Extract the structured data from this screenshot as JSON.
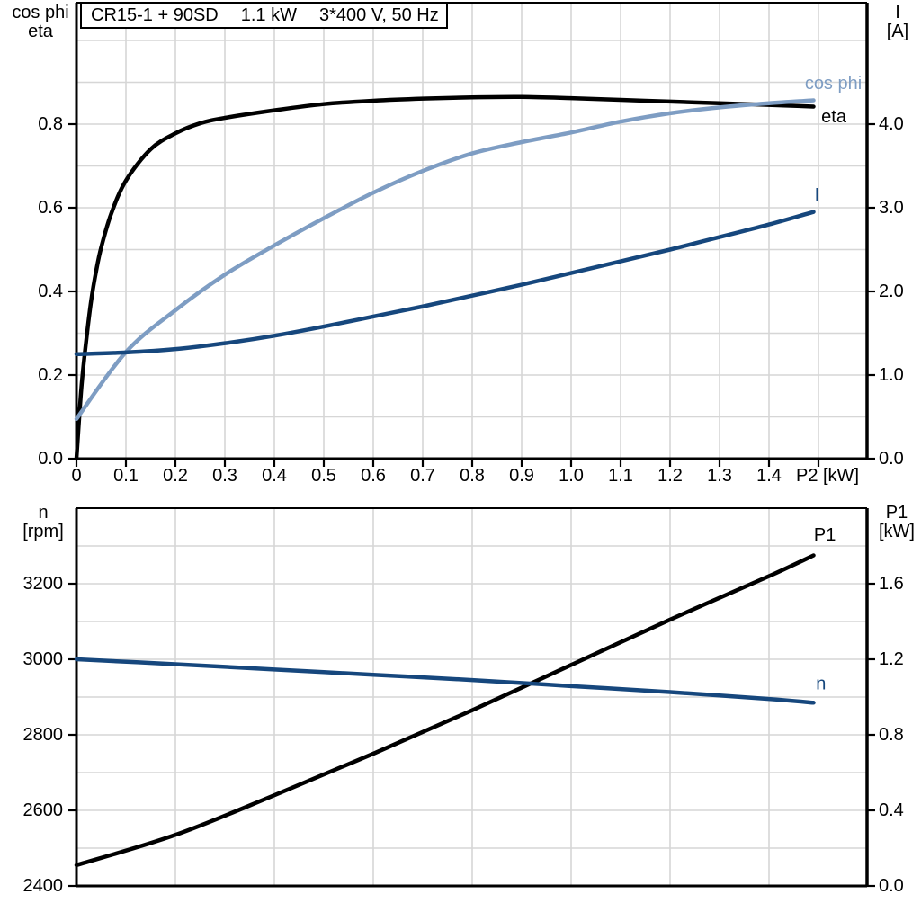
{
  "title_box": {
    "segments": [
      "CR15-1 + 90SD",
      "1.1 kW",
      "3*400 V, 50 Hz"
    ]
  },
  "colors": {
    "black": "#000000",
    "light_blue": "#7E9DC3",
    "dark_blue": "#16477D",
    "grid": "#D6D6D6",
    "background": "#FFFFFF"
  },
  "chart_data": [
    {
      "type": "line",
      "name": "motor-electrical-curves",
      "title": "CR15-1 + 90SD  1.1 kW  3*400 V, 50 Hz",
      "grid": true,
      "legend_position": "inline-right",
      "x_axis": {
        "unit_label": "P2 [kW]",
        "min": 0,
        "max": 1.6,
        "grid_step": 0.1,
        "ticks": [
          {
            "v": 0,
            "label": "0"
          },
          {
            "v": 0.1,
            "label": "0.1"
          },
          {
            "v": 0.2,
            "label": "0.2"
          },
          {
            "v": 0.3,
            "label": "0.3"
          },
          {
            "v": 0.4,
            "label": "0.4"
          },
          {
            "v": 0.5,
            "label": "0.5"
          },
          {
            "v": 0.6,
            "label": "0.6"
          },
          {
            "v": 0.7,
            "label": "0.7"
          },
          {
            "v": 0.8,
            "label": "0.8"
          },
          {
            "v": 0.9,
            "label": "0.9"
          },
          {
            "v": 1.0,
            "label": "1.0"
          },
          {
            "v": 1.1,
            "label": "1.1"
          },
          {
            "v": 1.2,
            "label": "1.2"
          },
          {
            "v": 1.3,
            "label": "1.3"
          },
          {
            "v": 1.4,
            "label": "1.4"
          }
        ]
      },
      "left_axis": {
        "title_lines": [
          "cos phi",
          "eta"
        ],
        "min": 0,
        "max": 1.0,
        "grid_step": 0.1,
        "ticks": [
          {
            "v": 0.0,
            "label": "0.0"
          },
          {
            "v": 0.2,
            "label": "0.2"
          },
          {
            "v": 0.4,
            "label": "0.4"
          },
          {
            "v": 0.6,
            "label": "0.6"
          },
          {
            "v": 0.8,
            "label": "0.8"
          }
        ]
      },
      "right_axis": {
        "title_lines": [
          "I",
          "[A]"
        ],
        "min": 0,
        "max": 5.0,
        "ticks": [
          {
            "v": 0.0,
            "label": "0.0"
          },
          {
            "v": 1.0,
            "label": "1.0"
          },
          {
            "v": 2.0,
            "label": "2.0"
          },
          {
            "v": 3.0,
            "label": "3.0"
          },
          {
            "v": 4.0,
            "label": "4.0"
          }
        ]
      },
      "series": [
        {
          "name": "eta",
          "label": "eta",
          "color": "black",
          "axis": "left",
          "label_pos": {
            "x": 1.531,
            "v": 0.817,
            "axis": "left"
          },
          "points": [
            [
              0,
              0
            ],
            [
              0.01,
              0.17
            ],
            [
              0.02,
              0.285
            ],
            [
              0.03,
              0.38
            ],
            [
              0.04,
              0.45
            ],
            [
              0.05,
              0.505
            ],
            [
              0.07,
              0.585
            ],
            [
              0.1,
              0.665
            ],
            [
              0.15,
              0.74
            ],
            [
              0.2,
              0.778
            ],
            [
              0.25,
              0.802
            ],
            [
              0.3,
              0.815
            ],
            [
              0.4,
              0.833
            ],
            [
              0.5,
              0.848
            ],
            [
              0.6,
              0.856
            ],
            [
              0.7,
              0.861
            ],
            [
              0.8,
              0.864
            ],
            [
              0.9,
              0.865
            ],
            [
              1.0,
              0.862
            ],
            [
              1.1,
              0.858
            ],
            [
              1.2,
              0.854
            ],
            [
              1.3,
              0.85
            ],
            [
              1.4,
              0.846
            ],
            [
              1.49,
              0.842
            ]
          ]
        },
        {
          "name": "cos_phi",
          "label": "cos phi",
          "color": "light_blue",
          "axis": "left",
          "label_pos": {
            "x": 1.53,
            "v": 0.897,
            "axis": "left"
          },
          "points": [
            [
              0,
              0.095
            ],
            [
              0.1,
              0.255
            ],
            [
              0.2,
              0.355
            ],
            [
              0.3,
              0.44
            ],
            [
              0.4,
              0.51
            ],
            [
              0.5,
              0.575
            ],
            [
              0.6,
              0.636
            ],
            [
              0.7,
              0.688
            ],
            [
              0.8,
              0.73
            ],
            [
              0.9,
              0.757
            ],
            [
              1.0,
              0.78
            ],
            [
              1.1,
              0.806
            ],
            [
              1.2,
              0.826
            ],
            [
              1.3,
              0.84
            ],
            [
              1.4,
              0.85
            ],
            [
              1.49,
              0.857
            ]
          ]
        },
        {
          "name": "current",
          "label": "I",
          "color": "dark_blue",
          "axis": "right",
          "label_pos": {
            "x": 1.497,
            "v": 3.15,
            "axis": "right"
          },
          "points": [
            [
              0,
              1.25
            ],
            [
              0.1,
              1.27
            ],
            [
              0.2,
              1.31
            ],
            [
              0.3,
              1.38
            ],
            [
              0.4,
              1.47
            ],
            [
              0.5,
              1.58
            ],
            [
              0.6,
              1.7
            ],
            [
              0.7,
              1.82
            ],
            [
              0.8,
              1.95
            ],
            [
              0.9,
              2.08
            ],
            [
              1.0,
              2.22
            ],
            [
              1.1,
              2.36
            ],
            [
              1.2,
              2.5
            ],
            [
              1.3,
              2.65
            ],
            [
              1.4,
              2.8
            ],
            [
              1.49,
              2.95
            ]
          ]
        }
      ]
    },
    {
      "type": "line",
      "name": "speed-and-input-power-curves",
      "grid": true,
      "legend_position": "inline-right",
      "x_axis": {
        "unit_label": "",
        "min": 0,
        "max": 1.6,
        "grid_step": 0.2,
        "ticks": []
      },
      "left_axis": {
        "title_lines": [
          "n",
          "[rpm]"
        ],
        "min": 2400,
        "max": 3400,
        "grid_step": 100,
        "ticks": [
          {
            "v": 2400,
            "label": "2400"
          },
          {
            "v": 2600,
            "label": "2600"
          },
          {
            "v": 2800,
            "label": "2800"
          },
          {
            "v": 3000,
            "label": "3000"
          },
          {
            "v": 3200,
            "label": "3200"
          }
        ]
      },
      "right_axis": {
        "title_lines": [
          "P1",
          "[kW]"
        ],
        "min": 0,
        "max": 2.0,
        "ticks": [
          {
            "v": 0.0,
            "label": "0.0"
          },
          {
            "v": 0.4,
            "label": "0.4"
          },
          {
            "v": 0.8,
            "label": "0.8"
          },
          {
            "v": 1.2,
            "label": "1.2"
          },
          {
            "v": 1.6,
            "label": "1.6"
          }
        ]
      },
      "series": [
        {
          "name": "p1",
          "label": "P1",
          "color": "black",
          "axis": "right",
          "label_pos": {
            "x": 1.513,
            "v": 1.857,
            "axis": "right"
          },
          "points": [
            [
              0,
              0.11
            ],
            [
              0.2,
              0.27
            ],
            [
              0.4,
              0.48
            ],
            [
              0.6,
              0.7
            ],
            [
              0.8,
              0.93
            ],
            [
              1.0,
              1.17
            ],
            [
              1.2,
              1.41
            ],
            [
              1.4,
              1.64
            ],
            [
              1.49,
              1.75
            ]
          ]
        },
        {
          "name": "n",
          "label": "n",
          "color": "dark_blue",
          "axis": "left",
          "label_pos": {
            "x": 1.505,
            "v": 2935,
            "axis": "left"
          },
          "points": [
            [
              0,
              3000
            ],
            [
              0.2,
              2987
            ],
            [
              0.4,
              2973
            ],
            [
              0.6,
              2959
            ],
            [
              0.8,
              2945
            ],
            [
              1.0,
              2929
            ],
            [
              1.2,
              2913
            ],
            [
              1.4,
              2895
            ],
            [
              1.49,
              2885
            ]
          ]
        }
      ]
    }
  ]
}
